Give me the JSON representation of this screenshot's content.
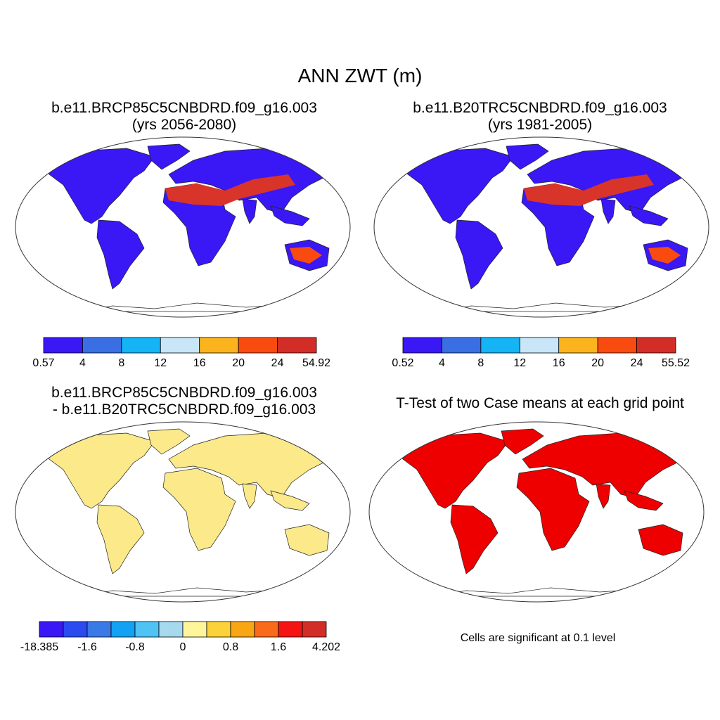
{
  "figure": {
    "title": "ANN ZWT (m)"
  },
  "panels": [
    {
      "id": "case1",
      "title_line1": "b.e11.BRCP85C5CNBDRD.f09_g16.003",
      "title_line2": "(yrs 2056-2080)",
      "colorbar": {
        "labels": [
          "0.57",
          "4",
          "8",
          "12",
          "16",
          "20",
          "24",
          "54.92"
        ],
        "colors": [
          "#3a17f5",
          "#3a6fe3",
          "#14b4f5",
          "#c8e6f8",
          "#fbb41e",
          "#f94a10",
          "#d32d28"
        ]
      }
    },
    {
      "id": "case2",
      "title_line1": "b.e11.B20TRC5CNBDRD.f09_g16.003",
      "title_line2": "(yrs 1981-2005)",
      "colorbar": {
        "labels": [
          "0.52",
          "4",
          "8",
          "12",
          "16",
          "20",
          "24",
          "55.52"
        ],
        "colors": [
          "#3a17f5",
          "#3a6fe3",
          "#14b4f5",
          "#c8e6f8",
          "#fbb41e",
          "#f94a10",
          "#d32d28"
        ]
      }
    },
    {
      "id": "difference",
      "title_line1": "b.e11.BRCP85C5CNBDRD.f09_g16.003",
      "title_line2": "- b.e11.B20TRC5CNBDRD.f09_g16.003",
      "colorbar": {
        "labels": [
          "-18.385",
          "-1.6",
          "-0.8",
          "0",
          "0.8",
          "1.6",
          "4.202"
        ],
        "colors": [
          "#3a17f5",
          "#2b4bf0",
          "#3a7ae6",
          "#12a1f3",
          "#4fc3f3",
          "#a6d8ee",
          "#fff59b",
          "#fcd23a",
          "#f9a615",
          "#f96a1a",
          "#f41414",
          "#d32d28"
        ]
      }
    },
    {
      "id": "ttest",
      "title_line1": "T-Test of two Case means at each grid point",
      "note": "Cells are significant at 0.1 level"
    }
  ],
  "map_colors": {
    "land_dry": "#d9342a",
    "land_wet": "#3a17f5",
    "diff_base": "#fbe98a",
    "significant": "#ee0000"
  }
}
